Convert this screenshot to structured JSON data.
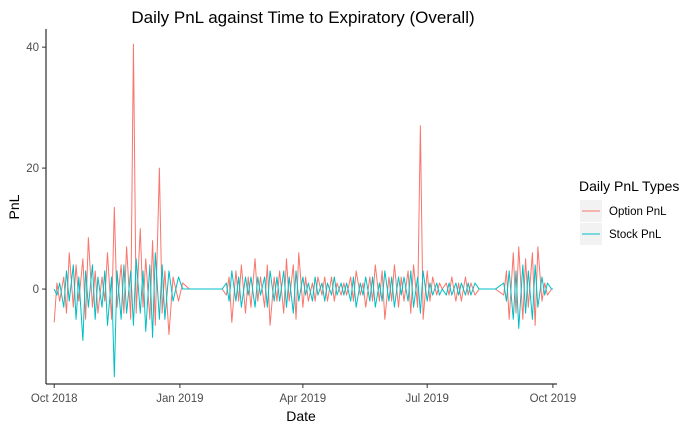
{
  "chart_data": {
    "type": "line",
    "title": "Daily PnL against Time to Expiratory (Overall)",
    "xlabel": "Date",
    "ylabel": "PnL",
    "x_range": [
      "2018-09-25",
      "2019-10-04"
    ],
    "y_range": [
      -15.7,
      43.0
    ],
    "x_ticks": [
      {
        "date": "2018-10-01",
        "label": "Oct 2018"
      },
      {
        "date": "2019-01-01",
        "label": "Jan 2019"
      },
      {
        "date": "2019-04-01",
        "label": "Apr 2019"
      },
      {
        "date": "2019-07-01",
        "label": "Jul 2019"
      },
      {
        "date": "2019-10-01",
        "label": "Oct 2019"
      }
    ],
    "y_ticks": [
      0,
      20,
      40
    ],
    "grid": false,
    "legend": {
      "title": "Daily PnL Types",
      "position": "right"
    },
    "series": [
      {
        "name": "Option PnL",
        "color": "#F8766D",
        "points": [
          [
            "2018-10-01",
            -5.5
          ],
          [
            "2018-10-03",
            1
          ],
          [
            "2018-10-05",
            -2
          ],
          [
            "2018-10-08",
            2
          ],
          [
            "2018-10-10",
            -4
          ],
          [
            "2018-10-12",
            6
          ],
          [
            "2018-10-15",
            -3
          ],
          [
            "2018-10-17",
            4
          ],
          [
            "2018-10-19",
            -2
          ],
          [
            "2018-10-22",
            5
          ],
          [
            "2018-10-24",
            -5
          ],
          [
            "2018-10-26",
            8.5
          ],
          [
            "2018-10-29",
            -3
          ],
          [
            "2018-10-31",
            3
          ],
          [
            "2018-11-02",
            -4
          ],
          [
            "2018-11-05",
            2
          ],
          [
            "2018-11-07",
            -2
          ],
          [
            "2018-11-09",
            6
          ],
          [
            "2018-11-12",
            -5
          ],
          [
            "2018-11-14",
            13.5
          ],
          [
            "2018-11-16",
            -3
          ],
          [
            "2018-11-19",
            4
          ],
          [
            "2018-11-21",
            -4
          ],
          [
            "2018-11-23",
            7
          ],
          [
            "2018-11-26",
            -5
          ],
          [
            "2018-11-28",
            40.5
          ],
          [
            "2018-11-30",
            -4
          ],
          [
            "2018-12-03",
            10
          ],
          [
            "2018-12-05",
            -3
          ],
          [
            "2018-12-07",
            5
          ],
          [
            "2018-12-10",
            -5
          ],
          [
            "2018-12-12",
            8
          ],
          [
            "2018-12-14",
            -6
          ],
          [
            "2018-12-17",
            20
          ],
          [
            "2018-12-19",
            -4
          ],
          [
            "2018-12-21",
            3
          ],
          [
            "2018-12-24",
            -7.5
          ],
          [
            "2018-12-27",
            2
          ],
          [
            "2018-12-31",
            -2
          ],
          [
            "2019-01-03",
            1
          ],
          [
            "2019-01-08",
            0
          ],
          [
            "2019-01-15",
            0
          ],
          [
            "2019-01-25",
            0
          ],
          [
            "2019-02-01",
            0
          ],
          [
            "2019-02-04",
            -1
          ],
          [
            "2019-02-06",
            2
          ],
          [
            "2019-02-08",
            -5.5
          ],
          [
            "2019-02-11",
            3
          ],
          [
            "2019-02-13",
            -2
          ],
          [
            "2019-02-15",
            4
          ],
          [
            "2019-02-18",
            -4
          ],
          [
            "2019-02-20",
            2
          ],
          [
            "2019-02-22",
            -3
          ],
          [
            "2019-02-25",
            5
          ],
          [
            "2019-02-27",
            -2
          ],
          [
            "2019-03-01",
            2
          ],
          [
            "2019-03-04",
            -3
          ],
          [
            "2019-03-06",
            4
          ],
          [
            "2019-03-08",
            -6
          ],
          [
            "2019-03-11",
            2
          ],
          [
            "2019-03-13",
            -2
          ],
          [
            "2019-03-15",
            3
          ],
          [
            "2019-03-18",
            -4
          ],
          [
            "2019-03-20",
            5
          ],
          [
            "2019-03-22",
            -2
          ],
          [
            "2019-03-25",
            4
          ],
          [
            "2019-03-27",
            -5
          ],
          [
            "2019-03-29",
            6
          ],
          [
            "2019-04-01",
            -3
          ],
          [
            "2019-04-03",
            2
          ],
          [
            "2019-04-05",
            -2
          ],
          [
            "2019-04-08",
            1
          ],
          [
            "2019-04-10",
            -2
          ],
          [
            "2019-04-12",
            2
          ],
          [
            "2019-04-15",
            -1
          ],
          [
            "2019-04-17",
            2
          ],
          [
            "2019-04-19",
            -2
          ],
          [
            "2019-04-22",
            2
          ],
          [
            "2019-04-24",
            -2
          ],
          [
            "2019-04-26",
            1
          ],
          [
            "2019-04-29",
            -1
          ],
          [
            "2019-05-01",
            1
          ],
          [
            "2019-05-03",
            -1
          ],
          [
            "2019-05-06",
            2
          ],
          [
            "2019-05-08",
            -2
          ],
          [
            "2019-05-10",
            3
          ],
          [
            "2019-05-13",
            -1
          ],
          [
            "2019-05-15",
            1
          ],
          [
            "2019-05-17",
            -3
          ],
          [
            "2019-05-20",
            2
          ],
          [
            "2019-05-22",
            -2
          ],
          [
            "2019-05-24",
            4
          ],
          [
            "2019-05-27",
            -2
          ],
          [
            "2019-05-29",
            3
          ],
          [
            "2019-05-31",
            -5
          ],
          [
            "2019-06-03",
            2
          ],
          [
            "2019-06-05",
            -2
          ],
          [
            "2019-06-07",
            4
          ],
          [
            "2019-06-10",
            -3
          ],
          [
            "2019-06-12",
            2
          ],
          [
            "2019-06-14",
            -2
          ],
          [
            "2019-06-17",
            3
          ],
          [
            "2019-06-19",
            -4
          ],
          [
            "2019-06-21",
            4
          ],
          [
            "2019-06-24",
            -3
          ],
          [
            "2019-06-26",
            27
          ],
          [
            "2019-06-28",
            -5
          ],
          [
            "2019-07-01",
            3
          ],
          [
            "2019-07-03",
            -2
          ],
          [
            "2019-07-05",
            2
          ],
          [
            "2019-07-08",
            -1
          ],
          [
            "2019-07-10",
            1
          ],
          [
            "2019-07-12",
            0
          ],
          [
            "2019-07-15",
            1
          ],
          [
            "2019-07-17",
            -1
          ],
          [
            "2019-07-19",
            2
          ],
          [
            "2019-07-22",
            -2
          ],
          [
            "2019-07-24",
            1
          ],
          [
            "2019-07-26",
            -2
          ],
          [
            "2019-07-29",
            2
          ],
          [
            "2019-07-31",
            -1
          ],
          [
            "2019-08-02",
            1
          ],
          [
            "2019-08-05",
            -1
          ],
          [
            "2019-08-08",
            0
          ],
          [
            "2019-08-14",
            0
          ],
          [
            "2019-08-20",
            0
          ],
          [
            "2019-08-26",
            -1
          ],
          [
            "2019-08-28",
            3
          ],
          [
            "2019-08-30",
            -5
          ],
          [
            "2019-09-02",
            6
          ],
          [
            "2019-09-04",
            -4
          ],
          [
            "2019-09-06",
            7
          ],
          [
            "2019-09-09",
            -5
          ],
          [
            "2019-09-11",
            5
          ],
          [
            "2019-09-13",
            -3
          ],
          [
            "2019-09-16",
            6
          ],
          [
            "2019-09-18",
            -6
          ],
          [
            "2019-09-20",
            7
          ],
          [
            "2019-09-23",
            -2
          ],
          [
            "2019-09-25",
            1
          ],
          [
            "2019-09-27",
            -1
          ],
          [
            "2019-09-30",
            0
          ],
          [
            "2019-10-01",
            0
          ]
        ]
      },
      {
        "name": "Stock PnL",
        "color": "#00BFC4",
        "points": [
          [
            "2018-10-01",
            0
          ],
          [
            "2018-10-03",
            -1
          ],
          [
            "2018-10-05",
            1
          ],
          [
            "2018-10-08",
            -3
          ],
          [
            "2018-10-10",
            3
          ],
          [
            "2018-10-12",
            -2
          ],
          [
            "2018-10-15",
            4
          ],
          [
            "2018-10-17",
            -5
          ],
          [
            "2018-10-19",
            2
          ],
          [
            "2018-10-22",
            -8.5
          ],
          [
            "2018-10-24",
            3
          ],
          [
            "2018-10-26",
            -3
          ],
          [
            "2018-10-29",
            4
          ],
          [
            "2018-10-31",
            -5
          ],
          [
            "2018-11-02",
            2
          ],
          [
            "2018-11-05",
            -3
          ],
          [
            "2018-11-07",
            3
          ],
          [
            "2018-11-09",
            -6
          ],
          [
            "2018-11-12",
            2
          ],
          [
            "2018-11-14",
            -14.5
          ],
          [
            "2018-11-16",
            3
          ],
          [
            "2018-11-19",
            -5
          ],
          [
            "2018-11-21",
            4
          ],
          [
            "2018-11-23",
            -4
          ],
          [
            "2018-11-26",
            3
          ],
          [
            "2018-11-28",
            -6
          ],
          [
            "2018-11-30",
            5
          ],
          [
            "2018-12-03",
            -4
          ],
          [
            "2018-12-05",
            3
          ],
          [
            "2018-12-07",
            -7
          ],
          [
            "2018-12-10",
            4
          ],
          [
            "2018-12-12",
            -8
          ],
          [
            "2018-12-14",
            6
          ],
          [
            "2018-12-17",
            -5
          ],
          [
            "2018-12-19",
            4
          ],
          [
            "2018-12-21",
            -5
          ],
          [
            "2018-12-24",
            3
          ],
          [
            "2018-12-27",
            -2
          ],
          [
            "2018-12-31",
            2
          ],
          [
            "2019-01-03",
            0
          ],
          [
            "2019-01-08",
            0
          ],
          [
            "2019-01-15",
            0
          ],
          [
            "2019-01-25",
            0
          ],
          [
            "2019-02-01",
            0
          ],
          [
            "2019-02-04",
            1
          ],
          [
            "2019-02-06",
            -2
          ],
          [
            "2019-02-08",
            3
          ],
          [
            "2019-02-11",
            -2
          ],
          [
            "2019-02-13",
            2
          ],
          [
            "2019-02-15",
            -3
          ],
          [
            "2019-02-18",
            2
          ],
          [
            "2019-02-20",
            -1
          ],
          [
            "2019-02-22",
            2
          ],
          [
            "2019-02-25",
            -3
          ],
          [
            "2019-02-27",
            2
          ],
          [
            "2019-03-01",
            -1
          ],
          [
            "2019-03-04",
            2
          ],
          [
            "2019-03-06",
            -3
          ],
          [
            "2019-03-08",
            3
          ],
          [
            "2019-03-11",
            -2
          ],
          [
            "2019-03-13",
            2
          ],
          [
            "2019-03-15",
            -2
          ],
          [
            "2019-03-18",
            3
          ],
          [
            "2019-03-20",
            -3
          ],
          [
            "2019-03-22",
            2
          ],
          [
            "2019-03-25",
            -4
          ],
          [
            "2019-03-27",
            3
          ],
          [
            "2019-03-29",
            -2
          ],
          [
            "2019-04-01",
            2
          ],
          [
            "2019-04-03",
            -1
          ],
          [
            "2019-04-05",
            1
          ],
          [
            "2019-04-08",
            -2
          ],
          [
            "2019-04-10",
            2
          ],
          [
            "2019-04-12",
            -1
          ],
          [
            "2019-04-15",
            1
          ],
          [
            "2019-04-17",
            -2
          ],
          [
            "2019-04-19",
            1
          ],
          [
            "2019-04-22",
            -1
          ],
          [
            "2019-04-24",
            2
          ],
          [
            "2019-04-26",
            -1
          ],
          [
            "2019-04-29",
            1
          ],
          [
            "2019-05-01",
            -1
          ],
          [
            "2019-05-03",
            1
          ],
          [
            "2019-05-06",
            -2
          ],
          [
            "2019-05-08",
            2
          ],
          [
            "2019-05-10",
            -3
          ],
          [
            "2019-05-13",
            1
          ],
          [
            "2019-05-15",
            -1
          ],
          [
            "2019-05-17",
            2
          ],
          [
            "2019-05-20",
            -2
          ],
          [
            "2019-05-22",
            2
          ],
          [
            "2019-05-24",
            -3
          ],
          [
            "2019-05-27",
            1
          ],
          [
            "2019-05-29",
            -2
          ],
          [
            "2019-05-31",
            3
          ],
          [
            "2019-06-03",
            -2
          ],
          [
            "2019-06-05",
            2
          ],
          [
            "2019-06-07",
            -3
          ],
          [
            "2019-06-10",
            2
          ],
          [
            "2019-06-12",
            -1
          ],
          [
            "2019-06-14",
            2
          ],
          [
            "2019-06-17",
            -2
          ],
          [
            "2019-06-19",
            3
          ],
          [
            "2019-06-21",
            -3
          ],
          [
            "2019-06-24",
            2
          ],
          [
            "2019-06-26",
            -4
          ],
          [
            "2019-06-28",
            3
          ],
          [
            "2019-07-01",
            -2
          ],
          [
            "2019-07-03",
            1
          ],
          [
            "2019-07-05",
            -1
          ],
          [
            "2019-07-08",
            1
          ],
          [
            "2019-07-10",
            -1
          ],
          [
            "2019-07-12",
            0
          ],
          [
            "2019-07-15",
            -1
          ],
          [
            "2019-07-17",
            1
          ],
          [
            "2019-07-19",
            -1
          ],
          [
            "2019-07-22",
            1
          ],
          [
            "2019-07-24",
            -1
          ],
          [
            "2019-07-26",
            1
          ],
          [
            "2019-07-29",
            -1
          ],
          [
            "2019-07-31",
            1
          ],
          [
            "2019-08-02",
            -1
          ],
          [
            "2019-08-05",
            1
          ],
          [
            "2019-08-08",
            0
          ],
          [
            "2019-08-14",
            0
          ],
          [
            "2019-08-20",
            0
          ],
          [
            "2019-08-26",
            1
          ],
          [
            "2019-08-28",
            -2
          ],
          [
            "2019-08-30",
            3
          ],
          [
            "2019-09-02",
            -5
          ],
          [
            "2019-09-04",
            3
          ],
          [
            "2019-09-06",
            -6.5
          ],
          [
            "2019-09-09",
            4
          ],
          [
            "2019-09-11",
            -4
          ],
          [
            "2019-09-13",
            3
          ],
          [
            "2019-09-16",
            -5
          ],
          [
            "2019-09-18",
            4
          ],
          [
            "2019-09-20",
            -3
          ],
          [
            "2019-09-23",
            2
          ],
          [
            "2019-09-25",
            -1
          ],
          [
            "2019-09-27",
            1
          ],
          [
            "2019-09-30",
            0
          ],
          [
            "2019-10-01",
            0
          ]
        ]
      }
    ]
  }
}
